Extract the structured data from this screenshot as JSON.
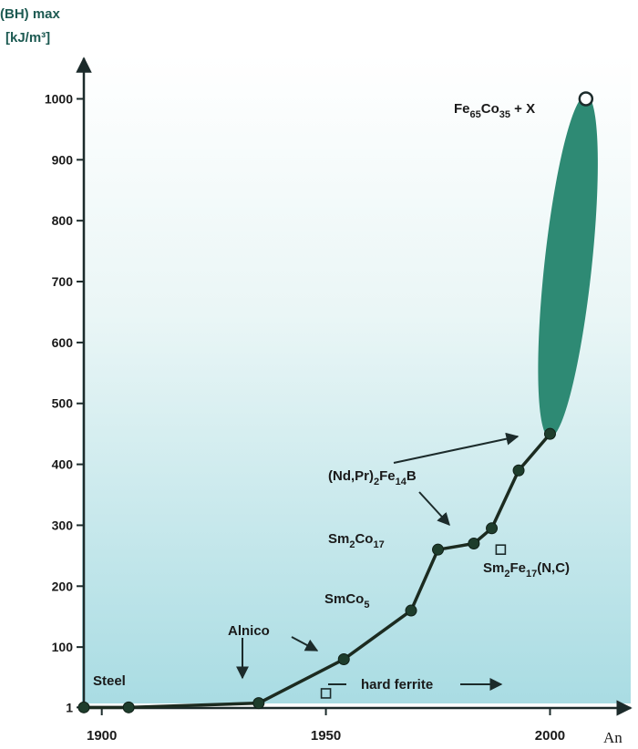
{
  "chart_data": {
    "type": "line",
    "ylabel_line1": "(BH) max",
    "ylabel_line2": "[kJ/m³]",
    "xlabel": "An",
    "x_ticks": [
      1900,
      1950,
      2000
    ],
    "y_ticks": [
      1,
      100,
      200,
      300,
      400,
      500,
      600,
      700,
      800,
      900,
      1000
    ],
    "xlim": [
      1896,
      2018
    ],
    "ylim": [
      0,
      1080
    ],
    "series": [
      {
        "values": [
          {
            "x": 1896,
            "y": 1
          },
          {
            "x": 1906,
            "y": 1
          },
          {
            "x": 1935,
            "y": 8
          },
          {
            "x": 1954,
            "y": 80
          },
          {
            "x": 1969,
            "y": 160
          },
          {
            "x": 1975,
            "y": 260
          },
          {
            "x": 1983,
            "y": 270
          },
          {
            "x": 1987,
            "y": 295
          },
          {
            "x": 1993,
            "y": 390
          },
          {
            "x": 2000,
            "y": 450
          }
        ]
      }
    ],
    "markers": [
      {
        "x": 1950,
        "y": 24,
        "shape": "square"
      },
      {
        "x": 1989,
        "y": 260,
        "shape": "square"
      },
      {
        "x": 2008,
        "y": 1000,
        "shape": "circle"
      }
    ],
    "region": {
      "x_from": 2000,
      "y_from": 450,
      "x_to": 2008,
      "y_to": 1000
    },
    "annotations": {
      "steel": "Steel",
      "alnico": "Alnico",
      "hard_ferrite": "hard ferrite",
      "smco5": {
        "main": "SmCo",
        "sub": "5"
      },
      "sm2co17": {
        "a": "Sm",
        "b": "2",
        "c": "Co",
        "d": "17"
      },
      "ndfeb": {
        "a": "(Nd,Pr)",
        "b": "2",
        "c": "Fe",
        "d": "14",
        "e": "B"
      },
      "sm2fe17": {
        "a": "Sm",
        "b": "2",
        "c": "Fe",
        "d": "17",
        "e": "(N,C)"
      },
      "feco": {
        "a": "Fe",
        "b": "65",
        "c": "Co",
        "d": "35",
        "e": " + X"
      }
    },
    "colors": {
      "line": "#1c2b20",
      "point": "#1e3d2c",
      "region": "#2e8a74",
      "axis": "#1c2b2b",
      "bg_top": "#ffffff",
      "bg_bottom": "#a9dce3",
      "title": "#1d5a52"
    }
  }
}
